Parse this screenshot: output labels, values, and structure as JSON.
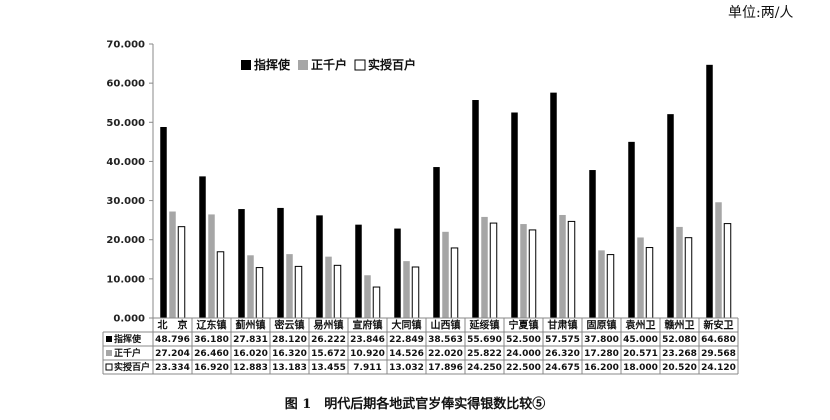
{
  "unit_label": "单位:两/人",
  "caption": "图 1　明代后期各地武官岁俸实得银数比较⑤",
  "colors": {
    "series_0": "#000000",
    "series_1": "#a6a6a6",
    "series_2": "#ffffff",
    "axis": "#888888",
    "grid": "#cccccc",
    "text": "#111111"
  },
  "chart_data": {
    "type": "bar",
    "title": "",
    "xlabel": "",
    "ylabel": "",
    "ylim": [
      0,
      70
    ],
    "y_ticks": [
      "0.000",
      "10.000",
      "20.000",
      "30.000",
      "40.000",
      "50.000",
      "60.000",
      "70.000"
    ],
    "legend_position": "top-left",
    "categories": [
      "北　京",
      "辽东镇",
      "蓟州镇",
      "密云镇",
      "易州镇",
      "宣府镇",
      "大同镇",
      "山西镇",
      "延绥镇",
      "宁夏镇",
      "甘肃镇",
      "固原镇",
      "袁州卫",
      "赣州卫",
      "新安卫"
    ],
    "series": [
      {
        "name": "指挥使",
        "values": [
          48.796,
          36.18,
          27.831,
          28.12,
          26.222,
          23.846,
          22.849,
          38.563,
          55.69,
          52.5,
          57.575,
          37.8,
          45.0,
          52.08,
          64.68
        ],
        "labels": [
          "48.796",
          "36.180",
          "27.831",
          "28.120",
          "26.222",
          "23.846",
          "22.849",
          "38.563",
          "55.690",
          "52.500",
          "57.575",
          "37.800",
          "45.000",
          "52.080",
          "64.680"
        ]
      },
      {
        "name": "正千户",
        "values": [
          27.204,
          26.46,
          16.02,
          16.32,
          15.672,
          10.92,
          14.526,
          22.02,
          25.822,
          24.0,
          26.32,
          17.28,
          20.571,
          23.268,
          29.568
        ],
        "labels": [
          "27.204",
          "26.460",
          "16.020",
          "16.320",
          "15.672",
          "10.920",
          "14.526",
          "22.020",
          "25.822",
          "24.000",
          "26.320",
          "17.280",
          "20.571",
          "23.268",
          "29.568"
        ]
      },
      {
        "name": "实授百户",
        "values": [
          23.334,
          16.92,
          12.883,
          13.183,
          13.455,
          7.911,
          13.032,
          17.896,
          24.25,
          22.5,
          24.675,
          16.2,
          18.0,
          20.52,
          24.12
        ],
        "labels": [
          "23.334",
          "16.920",
          "12.883",
          "13.183",
          "13.455",
          "7.911",
          "13.032",
          "17.896",
          "24.250",
          "22.500",
          "24.675",
          "16.200",
          "18.000",
          "20.520",
          "24.120"
        ]
      }
    ]
  }
}
